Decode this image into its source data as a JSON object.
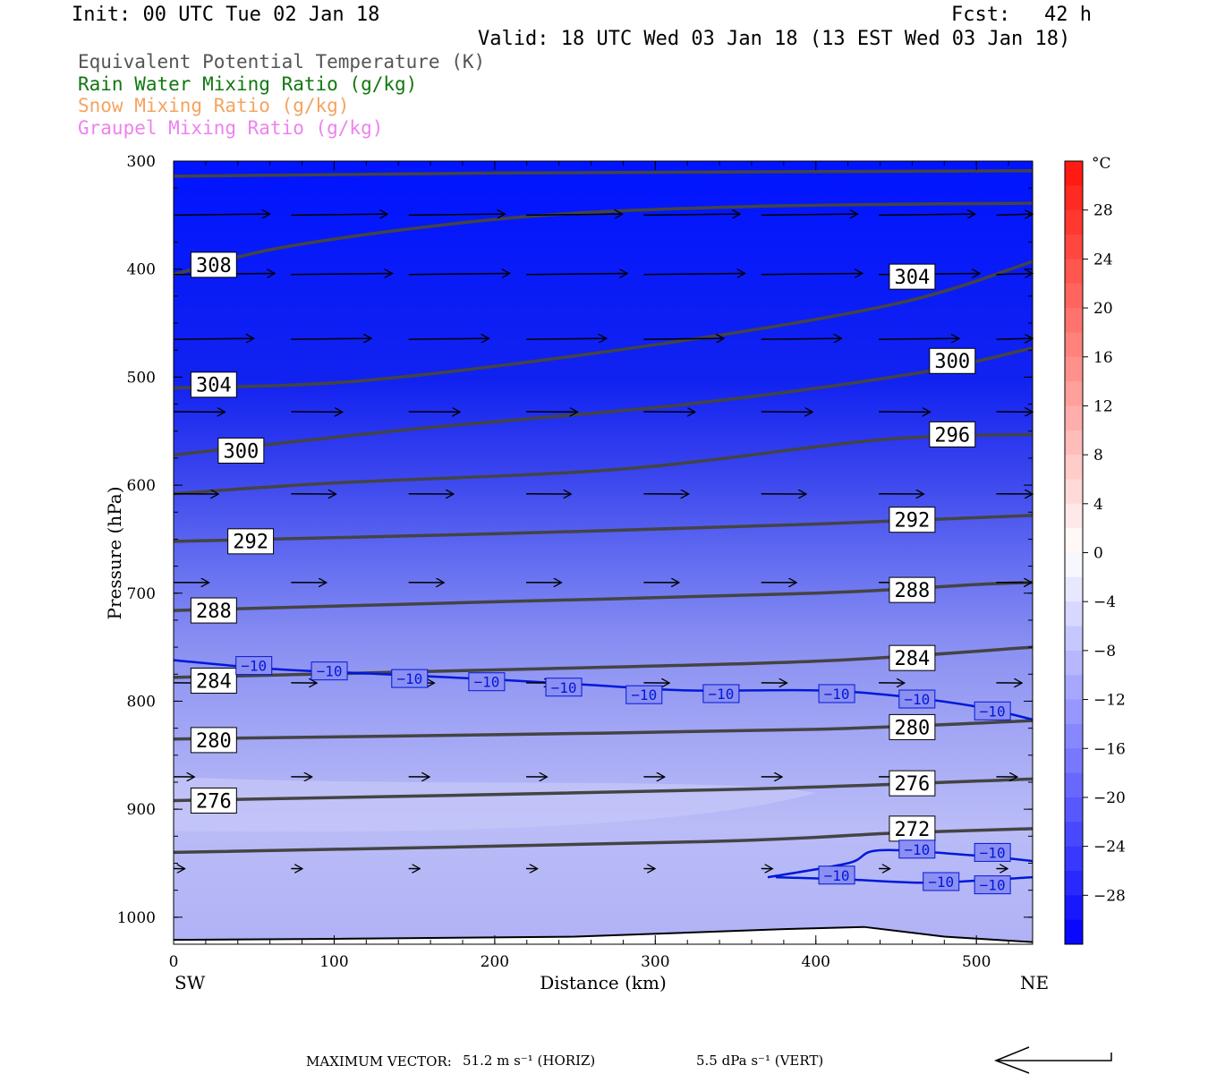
{
  "header": {
    "init": "Init: 00 UTC Tue 02 Jan 18",
    "fcst_label": "Fcst:",
    "fcst_value": "42 h",
    "valid": "Valid: 18 UTC Wed 03 Jan 18 (13 EST Wed 03 Jan 18)"
  },
  "legend": [
    {
      "text": "Equivalent Potential Temperature (K)",
      "color": "#444444"
    },
    {
      "text": "Rain Water Mixing Ratio (g/kg)",
      "color": "#117711"
    },
    {
      "text": "Snow Mixing Ratio (g/kg)",
      "color": "#f4a460"
    },
    {
      "text": "Graupel Mixing Ratio (g/kg)",
      "color": "#ee82ee"
    }
  ],
  "footer": {
    "max_vector_label": "MAXIMUM VECTOR:",
    "horiz": "51.2 m s⁻¹ (HORIZ)",
    "vert": "5.5 dPa s⁻¹ (VERT)"
  },
  "chart_data": {
    "type": "cross-section contour",
    "xlabel": "Distance (km)",
    "ylabel": "Pressure (hPa)",
    "x_left_label": "SW",
    "x_right_label": "NE",
    "xlim": [
      0,
      535
    ],
    "ylim": [
      1025,
      300
    ],
    "xticks": [
      0,
      100,
      200,
      300,
      400,
      500
    ],
    "yticks": [
      300,
      400,
      500,
      600,
      700,
      800,
      900,
      1000
    ],
    "colorbar": {
      "unit": "°C",
      "ticks": [
        28,
        24,
        20,
        16,
        12,
        8,
        4,
        0,
        -4,
        -8,
        -12,
        -16,
        -20,
        -24,
        -28
      ],
      "min": -32,
      "max": 32
    },
    "theta_e_contours": [
      {
        "value": 308,
        "points": [
          [
            0,
            405
          ],
          [
            75,
            378
          ],
          [
            215,
            352
          ],
          [
            360,
            342
          ],
          [
            535,
            339
          ]
        ],
        "label_at": [
          25,
          396
        ]
      },
      {
        "value": 304,
        "points": [
          [
            0,
            510
          ],
          [
            120,
            503
          ],
          [
            300,
            470
          ],
          [
            450,
            432
          ],
          [
            535,
            393
          ]
        ],
        "label_at": [
          25,
          507
        ],
        "label2_at": [
          460,
          407
        ],
        "label2": 304
      },
      {
        "value": 300,
        "points": [
          [
            0,
            572
          ],
          [
            150,
            548
          ],
          [
            320,
            525
          ],
          [
            460,
            497
          ],
          [
            535,
            473
          ]
        ],
        "label_at": [
          42,
          568
        ],
        "label2_at": [
          485,
          485
        ],
        "label2": 300
      },
      {
        "value": 296,
        "points": [
          [
            0,
            608
          ],
          [
            100,
            598
          ],
          [
            280,
            585
          ],
          [
            440,
            558
          ],
          [
            535,
            553
          ]
        ],
        "label_at": [
          485,
          553
        ]
      },
      {
        "value": 292,
        "points": [
          [
            0,
            652
          ],
          [
            200,
            645
          ],
          [
            400,
            636
          ],
          [
            535,
            628
          ]
        ],
        "label_at": [
          48,
          652
        ],
        "label2_at": [
          460,
          632
        ],
        "label2": 292
      },
      {
        "value": 288,
        "points": [
          [
            0,
            716
          ],
          [
            200,
            708
          ],
          [
            400,
            700
          ],
          [
            500,
            692
          ],
          [
            535,
            690
          ]
        ],
        "label_at": [
          25,
          716
        ],
        "label2_at": [
          460,
          697
        ],
        "label2": 288
      },
      {
        "value": 284,
        "points": [
          [
            0,
            778
          ],
          [
            200,
            771
          ],
          [
            400,
            763
          ],
          [
            535,
            750
          ]
        ],
        "label_at": [
          25,
          781
        ],
        "label2_at": [
          460,
          760
        ],
        "label2": 284
      },
      {
        "value": 280,
        "points": [
          [
            0,
            835
          ],
          [
            200,
            831
          ],
          [
            400,
            826
          ],
          [
            535,
            818
          ]
        ],
        "label_at": [
          25,
          836
        ],
        "label2_at": [
          460,
          824
        ],
        "label2": 280
      },
      {
        "value": 276,
        "points": [
          [
            0,
            892
          ],
          [
            340,
            882
          ],
          [
            535,
            872
          ]
        ],
        "label_at": [
          25,
          892
        ],
        "label2_at": [
          460,
          876
        ],
        "label2": 276
      },
      {
        "value": 272,
        "points": [
          [
            0,
            940
          ],
          [
            330,
            930
          ],
          [
            450,
            922
          ],
          [
            535,
            918
          ]
        ],
        "label_at": [
          460,
          918
        ],
        "label2": null
      }
    ],
    "temperature_contours": [
      {
        "value": -10,
        "points": [
          [
            0,
            762
          ],
          [
            60,
            770
          ],
          [
            130,
            775
          ],
          [
            200,
            780
          ],
          [
            260,
            785
          ],
          [
            320,
            790
          ],
          [
            400,
            790
          ],
          [
            450,
            795
          ],
          [
            500,
            805
          ],
          [
            535,
            817
          ]
        ],
        "labels_at": [
          [
            50,
            767
          ],
          [
            97,
            772
          ],
          [
            147,
            779
          ],
          [
            195,
            782
          ],
          [
            243,
            787
          ],
          [
            293,
            794
          ],
          [
            341,
            793
          ],
          [
            413,
            793
          ],
          [
            463,
            798
          ],
          [
            510,
            809
          ]
        ]
      },
      {
        "value": -10,
        "points": [
          [
            370,
            963
          ],
          [
            420,
            950
          ],
          [
            440,
            938
          ],
          [
            500,
            943
          ],
          [
            535,
            948
          ]
        ],
        "labels_at": [
          [
            413,
            961
          ],
          [
            463,
            937
          ],
          [
            510,
            940
          ]
        ]
      },
      {
        "value": -10,
        "points": [
          [
            375,
            963
          ],
          [
            420,
            965
          ],
          [
            470,
            968
          ],
          [
            535,
            963
          ]
        ],
        "labels_at": [
          [
            478,
            967
          ],
          [
            510,
            970
          ]
        ]
      }
    ],
    "wind_vectors": {
      "rows": [
        350,
        405,
        465,
        532,
        608,
        690,
        783,
        870,
        955
      ],
      "row_lengths": [
        60,
        63,
        50,
        32,
        28,
        22,
        16,
        13,
        7
      ]
    }
  }
}
